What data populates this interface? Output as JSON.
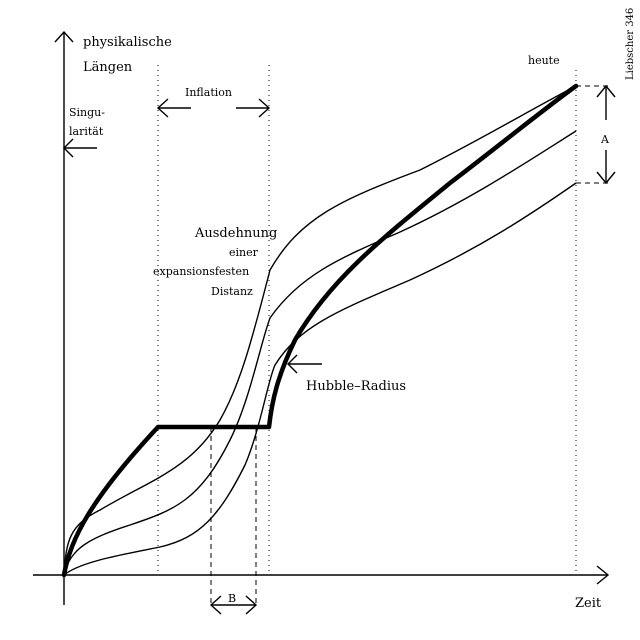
{
  "axes": {
    "y_label_line1": "physikalische",
    "y_label_line2": "Längen",
    "x_label": "Zeit"
  },
  "labels": {
    "singularity_line1": "Singu-",
    "singularity_line2": "larität",
    "inflation": "Inflation",
    "today": "heute",
    "distance_line1": "Ausdehnung",
    "distance_line2": "einer",
    "distance_line3": "expansionsfesten",
    "distance_line4": "Distanz",
    "hubble_radius": "Hubble–Radius",
    "marker_a": "A",
    "marker_b": "B",
    "credit": "Liebscher 346"
  }
}
